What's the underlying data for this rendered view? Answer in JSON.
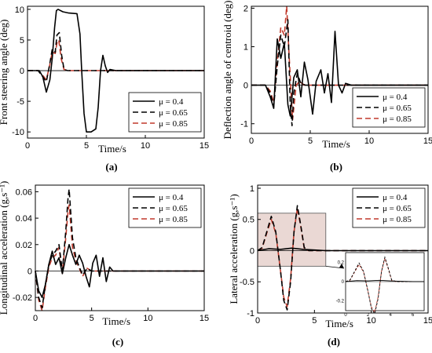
{
  "chart_data": [
    {
      "type": "line",
      "panel": "(a)",
      "ylabel": "Front steering angle (deg)",
      "xlabel": "Time/s",
      "xlim": [
        0,
        15
      ],
      "ylim": [
        -11,
        10.5
      ],
      "xticks": [
        0,
        5,
        10,
        15
      ],
      "yticks": [
        -10,
        -5,
        0,
        5,
        10
      ],
      "legend_position": "lower-right",
      "series": [
        {
          "name": "μ = 0.4",
          "color": "#000000",
          "dash": "solid",
          "x": [
            0,
            1.0,
            1.3,
            1.6,
            1.9,
            2.1,
            2.3,
            2.45,
            2.6,
            3.0,
            3.5,
            4.2,
            4.45,
            4.6,
            4.8,
            5.0,
            5.4,
            5.8,
            6.0,
            6.2,
            6.4,
            6.6,
            6.8,
            7.0,
            7.5,
            15
          ],
          "y": [
            0,
            0,
            -1,
            -3.5,
            -1.5,
            2,
            7,
            9.8,
            10,
            9.6,
            9.4,
            9.3,
            6,
            0,
            -7,
            -10,
            -10,
            -9.5,
            -6,
            0,
            2.5,
            0.8,
            -0.3,
            0.2,
            0,
            0
          ]
        },
        {
          "name": "μ = 0.65",
          "color": "#000000",
          "dash": "dashed",
          "x": [
            0,
            0.9,
            1.3,
            1.6,
            1.9,
            2.1,
            2.35,
            2.5,
            2.7,
            2.9,
            3.1,
            3.4,
            15
          ],
          "y": [
            0,
            0,
            -1,
            -1.8,
            1.2,
            3.5,
            3,
            5.8,
            6.2,
            2.5,
            0.2,
            0,
            0
          ]
        },
        {
          "name": "μ = 0.85",
          "color": "#c0392b",
          "dash": "dashed",
          "x": [
            0,
            0.9,
            1.3,
            1.6,
            1.9,
            2.1,
            2.35,
            2.5,
            2.65,
            2.85,
            3.1,
            3.4,
            15
          ],
          "y": [
            0,
            0,
            -0.8,
            -1.5,
            1,
            3,
            2.8,
            4.5,
            5,
            2,
            0.2,
            0,
            0
          ]
        }
      ]
    },
    {
      "type": "line",
      "panel": "(b)",
      "ylabel": "Deflection angle of centroid (deg)",
      "xlabel": "Time/s",
      "xlim": [
        0,
        15
      ],
      "ylim": [
        -1.25,
        2.05
      ],
      "xticks": [
        0,
        5,
        10,
        15
      ],
      "yticks": [
        -1,
        0,
        1,
        2
      ],
      "legend_position": "lower-right",
      "series": [
        {
          "name": "μ = 0.4",
          "color": "#000000",
          "dash": "solid",
          "x": [
            0,
            1.2,
            1.6,
            1.9,
            2.2,
            2.5,
            2.8,
            3.1,
            3.3,
            3.6,
            3.9,
            4.2,
            4.5,
            4.8,
            5.2,
            5.5,
            5.9,
            6.2,
            6.5,
            6.8,
            7.1,
            7.4,
            7.7,
            8.0,
            8.5,
            9,
            15
          ],
          "y": [
            0,
            0,
            -0.3,
            -0.6,
            1.2,
            0.7,
            1.1,
            -0.5,
            -0.8,
            0.2,
            0.4,
            -0.3,
            0.6,
            0.15,
            -0.75,
            0.1,
            0.4,
            -0.2,
            0.3,
            -0.45,
            1.4,
            0,
            -0.2,
            0.05,
            0,
            0,
            0
          ]
        },
        {
          "name": "μ = 0.65",
          "color": "#000000",
          "dash": "dashed",
          "x": [
            0,
            1.2,
            1.6,
            1.9,
            2.2,
            2.5,
            2.8,
            3.1,
            3.3,
            3.45,
            3.6,
            3.9,
            4.2,
            4.6,
            5,
            15
          ],
          "y": [
            0,
            0,
            -0.2,
            -0.55,
            0.5,
            1.3,
            1,
            1.7,
            -0.5,
            -1.05,
            -0.2,
            0.3,
            0.05,
            0,
            0,
            0
          ]
        },
        {
          "name": "μ = 0.85",
          "color": "#c0392b",
          "dash": "dashed",
          "x": [
            0,
            1.2,
            1.6,
            1.9,
            2.2,
            2.5,
            2.8,
            3.0,
            3.2,
            3.5,
            3.8,
            4.1,
            4.5,
            15
          ],
          "y": [
            0,
            0,
            -0.15,
            -0.45,
            0.6,
            1.5,
            1.3,
            2.05,
            0.8,
            -0.9,
            0,
            0.1,
            0,
            0
          ]
        }
      ]
    },
    {
      "type": "line",
      "panel": "(c)",
      "ylabel": "Longitudinal acceleration (g,s⁻¹)",
      "xlabel": "Time/s",
      "xlim": [
        0,
        15
      ],
      "ylim": [
        -0.03,
        0.065
      ],
      "xticks": [
        0,
        5,
        10,
        15
      ],
      "yticks": [
        -0.02,
        0,
        0.02,
        0.04,
        0.06
      ],
      "legend_position": "top-right",
      "series": [
        {
          "name": "μ = 0.4",
          "color": "#000000",
          "dash": "solid",
          "x": [
            0,
            0.3,
            0.6,
            0.9,
            1.2,
            1.5,
            1.8,
            2.1,
            2.4,
            2.7,
            3.0,
            3.3,
            3.6,
            3.9,
            4.2,
            4.5,
            4.8,
            5.1,
            5.4,
            5.7,
            6.0,
            6.3,
            6.6,
            6.9,
            7.5,
            8,
            15
          ],
          "y": [
            0,
            -0.015,
            -0.02,
            -0.01,
            0.005,
            0.015,
            0.005,
            0.01,
            -0.002,
            0.01,
            0.02,
            0.012,
            0.005,
            0.012,
            0.006,
            -0.004,
            -0.012,
            0.006,
            0.012,
            -0.004,
            0.01,
            -0.008,
            0.003,
            0,
            0,
            0,
            0
          ]
        },
        {
          "name": "μ = 0.65",
          "color": "#000000",
          "dash": "dashed",
          "x": [
            0,
            0.3,
            0.6,
            0.9,
            1.2,
            1.5,
            1.8,
            2.1,
            2.4,
            2.7,
            2.9,
            3.0,
            3.1,
            3.3,
            3.6,
            3.9,
            4.2,
            4.6,
            5.0,
            5.5,
            15
          ],
          "y": [
            0,
            -0.02,
            -0.028,
            -0.01,
            0.005,
            0.012,
            0.015,
            0.02,
            0,
            0.03,
            0.055,
            0.062,
            0.05,
            0.025,
            0.01,
            0.003,
            -0.003,
            0.002,
            0,
            0,
            0
          ]
        },
        {
          "name": "μ = 0.85",
          "color": "#c0392b",
          "dash": "dashed",
          "x": [
            0,
            0.3,
            0.6,
            0.9,
            1.2,
            1.5,
            1.8,
            2.1,
            2.4,
            2.7,
            2.9,
            3.0,
            3.1,
            3.3,
            3.6,
            3.9,
            4.2,
            4.6,
            5.0,
            5.5,
            15
          ],
          "y": [
            0,
            -0.022,
            -0.03,
            -0.012,
            0.003,
            0.01,
            0.012,
            0.018,
            -0.002,
            0.025,
            0.045,
            0.05,
            0.04,
            0.018,
            0.008,
            0.002,
            -0.004,
            0.002,
            0,
            0,
            0
          ]
        }
      ]
    },
    {
      "type": "line",
      "panel": "(d)",
      "ylabel": "Lateral acceleration (g,s⁻¹)",
      "xlabel": "Time/s",
      "xlim": [
        0,
        15
      ],
      "ylim": [
        -1.0,
        1.05
      ],
      "xticks": [
        0,
        5,
        10,
        15
      ],
      "yticks": [
        -1,
        -0.5,
        0,
        0.5,
        1
      ],
      "legend_position": "top-right",
      "series": [
        {
          "name": "μ = 0.4",
          "color": "#000000",
          "dash": "solid",
          "x": [
            0,
            1.0,
            2.0,
            3.0,
            4.0,
            5.0,
            6.0,
            15
          ],
          "y": [
            0,
            0.03,
            0.02,
            0.04,
            0.02,
            0.01,
            0,
            0
          ]
        },
        {
          "name": "μ = 0.65",
          "color": "#000000",
          "dash": "dashed",
          "x": [
            0,
            0.4,
            0.8,
            1.2,
            1.6,
            2.0,
            2.3,
            2.6,
            2.9,
            3.2,
            3.5,
            3.8,
            4.1,
            4.5,
            5.0,
            6,
            15
          ],
          "y": [
            0,
            0.05,
            0.3,
            0.55,
            0.3,
            -0.3,
            -0.8,
            -0.95,
            -0.5,
            0.3,
            0.72,
            0.4,
            0.05,
            0,
            0,
            0,
            0
          ]
        },
        {
          "name": "μ = 0.85",
          "color": "#c0392b",
          "dash": "dashed",
          "x": [
            0,
            0.4,
            0.8,
            1.2,
            1.6,
            2.0,
            2.3,
            2.6,
            2.9,
            3.2,
            3.5,
            3.8,
            4.1,
            4.5,
            5.0,
            6,
            15
          ],
          "y": [
            0,
            0.04,
            0.28,
            0.5,
            0.28,
            -0.3,
            -0.75,
            -0.9,
            -0.45,
            0.3,
            0.68,
            0.38,
            0.04,
            0,
            0,
            0,
            0
          ]
        }
      ],
      "highlight_region": {
        "x": [
          0,
          6
        ],
        "y": [
          -0.25,
          0.6
        ],
        "color": "#d8b8b0"
      },
      "inset": {
        "xticks": [
          0,
          2,
          4,
          6
        ],
        "yticks": [
          -0.2,
          0,
          0.2
        ],
        "xlim": [
          0,
          7
        ],
        "ylim": [
          -0.3,
          0.3
        ]
      }
    }
  ]
}
